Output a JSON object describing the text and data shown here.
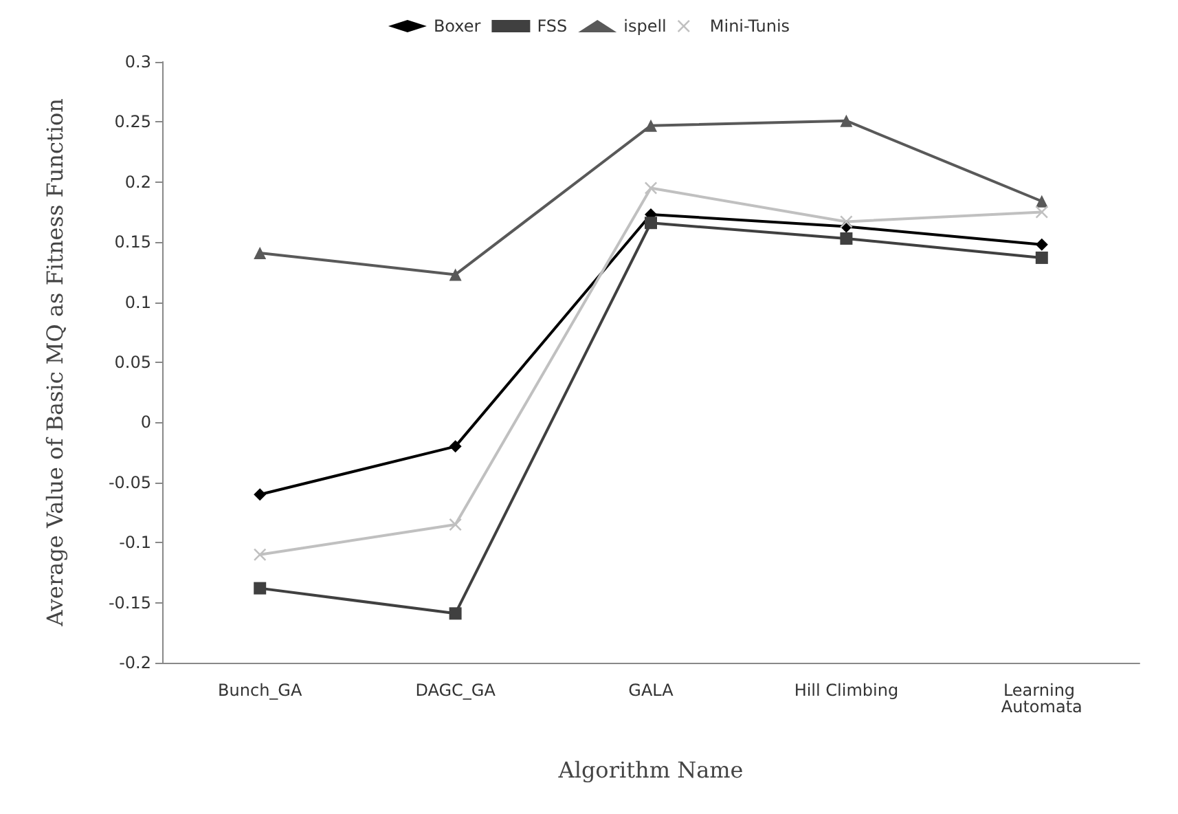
{
  "chart_data": {
    "type": "line",
    "xlabel": "Algorithm Name",
    "ylabel": "Average Value of Basic MQ as Fitness Function",
    "categories": [
      "Bunch_GA",
      "DAGC_GA",
      "GALA",
      "Hill Climbing",
      "Learning Automata"
    ],
    "series": [
      {
        "name": "Boxer",
        "color": "#000000",
        "marker": "diamond",
        "values": [
          -0.06,
          -0.02,
          0.173,
          0.163,
          0.148
        ]
      },
      {
        "name": "FSS",
        "color": "#404040",
        "marker": "square",
        "values": [
          -0.138,
          -0.159,
          0.166,
          0.153,
          0.137
        ]
      },
      {
        "name": "ispell",
        "color": "#595959",
        "marker": "triangle",
        "values": [
          0.141,
          0.123,
          0.247,
          0.251,
          0.184
        ]
      },
      {
        "name": "Mini-Tunis",
        "color": "#c0c0c0",
        "marker": "cross",
        "values": [
          -0.11,
          -0.085,
          0.195,
          0.167,
          0.175
        ]
      }
    ],
    "ylim": [
      -0.2,
      0.3
    ],
    "yticks": [
      -0.2,
      -0.15,
      -0.1,
      -0.05,
      0,
      0.05,
      0.1,
      0.15,
      0.2,
      0.25,
      0.3
    ],
    "grid": false,
    "legend": "top",
    "line_style": "solid"
  }
}
